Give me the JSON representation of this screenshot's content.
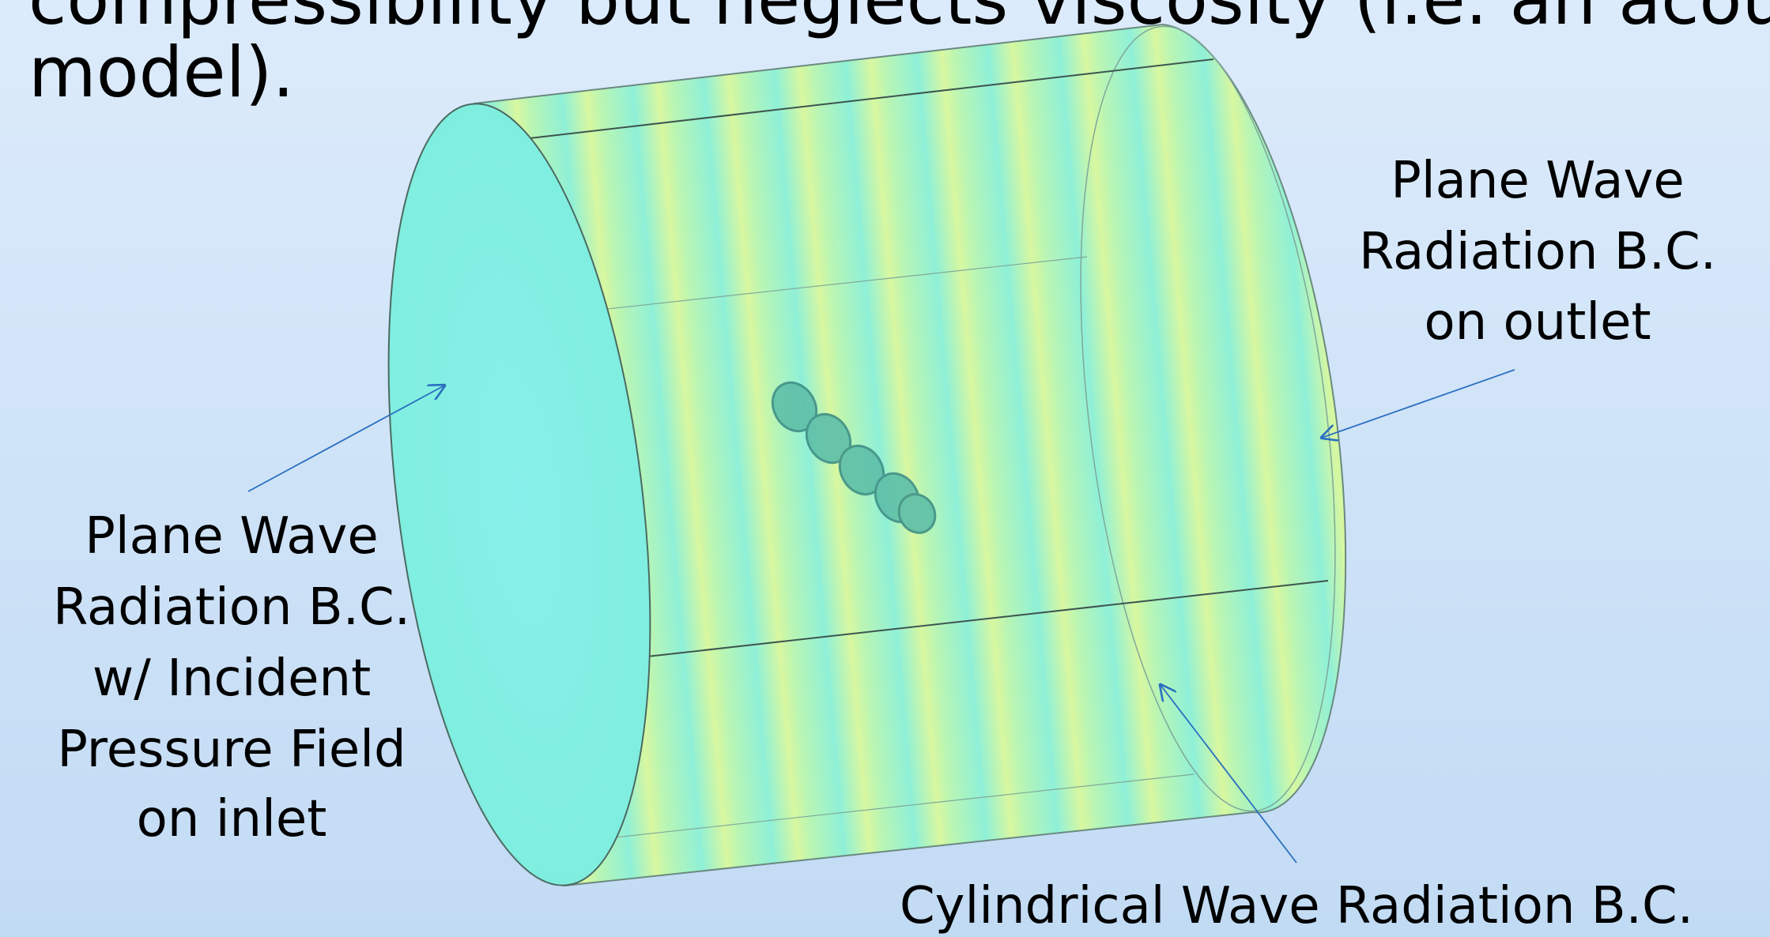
{
  "slide": {
    "body_lines": [
      "compressibility but neglects viscosity (i.e. an acoustic",
      "model)."
    ],
    "outlet_label": [
      "Plane Wave",
      "Radiation  B.C.",
      "on outlet"
    ],
    "inlet_label": [
      "Plane Wave",
      "Radiation B.C.",
      "w/ Incident",
      "Pressure Field",
      "on inlet"
    ],
    "side_label": [
      "Cylindrical Wave Radiation B.C."
    ]
  }
}
